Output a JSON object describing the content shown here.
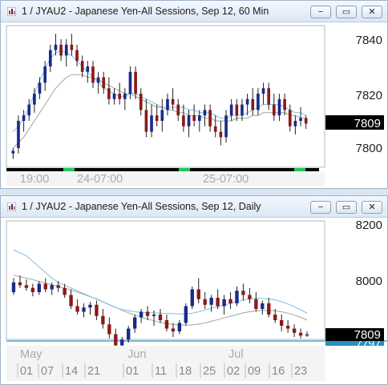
{
  "colors": {
    "bullish": "#1a2a8c",
    "bearish": "#8b1a1a",
    "ma_fast": "#7fbfe6",
    "ma_slow": "#99aa99",
    "accent_line": "#2a8fc0",
    "price_box_bg": "#000000",
    "price_box_fg": "#ffffff"
  },
  "icons": {
    "chart": "chart-icon",
    "minimize": "minimize-icon",
    "maximize": "maximize-icon",
    "close": "close-icon"
  },
  "window1": {
    "title": "1 / JYAU2 - Japanese Yen-All Sessions, Sep 12, 60 Min",
    "buttons": {
      "minimize": "−",
      "maximize": "▭",
      "close": "✕"
    },
    "price_labels": [
      "7840",
      "7820",
      "7800"
    ],
    "last_price": "7809",
    "time_labels": [
      "19:00",
      "24-07:00",
      "25-07:00"
    ],
    "chart_data": {
      "type": "candlestick",
      "y_ticks": [
        7800,
        7820,
        7840
      ],
      "last": 7809,
      "series": [
        {
          "name": "price",
          "ohlc": [
            [
              7798,
              7800,
              7796,
              7799
            ],
            [
              7800,
              7812,
              7798,
              7810
            ],
            [
              7810,
              7814,
              7806,
              7812
            ],
            [
              7812,
              7818,
              7810,
              7816
            ],
            [
              7816,
              7822,
              7813,
              7820
            ],
            [
              7820,
              7826,
              7818,
              7824
            ],
            [
              7824,
              7832,
              7821,
              7830
            ],
            [
              7830,
              7838,
              7828,
              7836
            ],
            [
              7836,
              7842,
              7834,
              7838
            ],
            [
              7838,
              7840,
              7832,
              7834
            ],
            [
              7834,
              7840,
              7830,
              7838
            ],
            [
              7838,
              7842,
              7834,
              7836
            ],
            [
              7836,
              7838,
              7830,
              7832
            ],
            [
              7832,
              7834,
              7826,
              7828
            ],
            [
              7828,
              7832,
              7824,
              7830
            ],
            [
              7830,
              7832,
              7822,
              7824
            ],
            [
              7824,
              7828,
              7820,
              7826
            ],
            [
              7826,
              7828,
              7820,
              7822
            ],
            [
              7822,
              7826,
              7816,
              7818
            ],
            [
              7818,
              7822,
              7816,
              7820
            ],
            [
              7820,
              7824,
              7816,
              7818
            ],
            [
              7818,
              7822,
              7814,
              7820
            ],
            [
              7820,
              7830,
              7818,
              7828
            ],
            [
              7828,
              7830,
              7818,
              7820
            ],
            [
              7820,
              7822,
              7812,
              7814
            ],
            [
              7814,
              7818,
              7804,
              7806
            ],
            [
              7806,
              7816,
              7804,
              7812
            ],
            [
              7812,
              7816,
              7808,
              7810
            ],
            [
              7810,
              7818,
              7806,
              7814
            ],
            [
              7814,
              7820,
              7812,
              7818
            ],
            [
              7818,
              7822,
              7814,
              7816
            ],
            [
              7816,
              7818,
              7810,
              7812
            ],
            [
              7812,
              7816,
              7806,
              7808
            ],
            [
              7808,
              7814,
              7804,
              7812
            ],
            [
              7812,
              7816,
              7808,
              7810
            ],
            [
              7810,
              7814,
              7806,
              7812
            ],
            [
              7812,
              7816,
              7808,
              7814
            ],
            [
              7814,
              7816,
              7806,
              7808
            ],
            [
              7808,
              7812,
              7804,
              7806
            ],
            [
              7806,
              7810,
              7801,
              7804
            ],
            [
              7804,
              7814,
              7802,
              7812
            ],
            [
              7812,
              7818,
              7810,
              7816
            ],
            [
              7816,
              7818,
              7810,
              7812
            ],
            [
              7812,
              7818,
              7810,
              7816
            ],
            [
              7816,
              7820,
              7812,
              7818
            ],
            [
              7818,
              7822,
              7812,
              7814
            ],
            [
              7814,
              7822,
              7812,
              7820
            ],
            [
              7820,
              7824,
              7816,
              7822
            ],
            [
              7822,
              7824,
              7814,
              7816
            ],
            [
              7816,
              7820,
              7810,
              7812
            ],
            [
              7812,
              7820,
              7810,
              7818
            ],
            [
              7818,
              7820,
              7812,
              7814
            ],
            [
              7814,
              7816,
              7806,
              7808
            ],
            [
              7808,
              7812,
              7805,
              7810
            ],
            [
              7810,
              7815,
              7808,
              7811
            ],
            [
              7811,
              7812,
              7807,
              7809
            ]
          ]
        },
        {
          "name": "ma_fast",
          "values": [
            7806,
            7808,
            7811,
            7815,
            7820,
            7825,
            7829,
            7833,
            7835,
            7836,
            7835,
            7834,
            7832,
            7830,
            7828,
            7826,
            7824,
            7822,
            7821,
            7820,
            7819,
            7819,
            7820,
            7820,
            7819,
            7818,
            7817,
            7816,
            7815,
            7815,
            7815,
            7815,
            7815,
            7814,
            7814,
            7813,
            7813,
            7813,
            7812,
            7811,
            7811,
            7812,
            7812,
            7812,
            7813,
            7814,
            7815,
            7816,
            7816,
            7816,
            7816,
            7815,
            7814,
            7813,
            7813,
            7812
          ]
        },
        {
          "name": "ma_slow",
          "values": [
            7800,
            7802,
            7804,
            7807,
            7810,
            7813,
            7816,
            7819,
            7822,
            7824,
            7826,
            7827,
            7827,
            7827,
            7826,
            7826,
            7825,
            7824,
            7823,
            7822,
            7821,
            7820,
            7820,
            7819,
            7818,
            7817,
            7816,
            7815,
            7815,
            7814,
            7814,
            7813,
            7813,
            7812,
            7812,
            7812,
            7811,
            7811,
            7810,
            7810,
            7810,
            7810,
            7811,
            7811,
            7811,
            7812,
            7812,
            7813,
            7813,
            7813,
            7813,
            7813,
            7812,
            7812,
            7811,
            7811
          ]
        }
      ]
    }
  },
  "window2": {
    "title": "1 / JYAU2 - Japanese Yen-All Sessions, Sep 12, Daily",
    "buttons": {
      "minimize": "−",
      "maximize": "▭",
      "close": "✕"
    },
    "price_labels": [
      "8200",
      "8000"
    ],
    "last_price": "7809",
    "ref_price": "7797",
    "month_labels": [
      "May",
      "Jun",
      "Jul"
    ],
    "day_labels": [
      "01",
      "07",
      "14",
      "21",
      "01",
      "11",
      "18",
      "25",
      "02",
      "09",
      "16",
      "23"
    ],
    "chart_data": {
      "type": "candlestick",
      "y_ticks": [
        8000,
        8200
      ],
      "last": 7809,
      "series": [
        {
          "name": "price",
          "ohlc": [
            [
              7960,
              8010,
              7950,
              7995
            ],
            [
              7995,
              8020,
              7975,
              7985
            ],
            [
              7985,
              8005,
              7965,
              7975
            ],
            [
              7975,
              7990,
              7945,
              7960
            ],
            [
              7960,
              8000,
              7950,
              7990
            ],
            [
              7990,
              8010,
              7960,
              7970
            ],
            [
              7970,
              7995,
              7950,
              7985
            ],
            [
              7985,
              8000,
              7960,
              7975
            ],
            [
              7975,
              7990,
              7940,
              7950
            ],
            [
              7950,
              7970,
              7900,
              7910
            ],
            [
              7910,
              7935,
              7880,
              7890
            ],
            [
              7890,
              7920,
              7870,
              7905
            ],
            [
              7905,
              7925,
              7880,
              7915
            ],
            [
              7915,
              7930,
              7860,
              7875
            ],
            [
              7875,
              7900,
              7830,
              7845
            ],
            [
              7845,
              7870,
              7795,
              7810
            ],
            [
              7810,
              7830,
              7760,
              7770
            ],
            [
              7770,
              7800,
              7740,
              7790
            ],
            [
              7790,
              7840,
              7780,
              7830
            ],
            [
              7830,
              7880,
              7815,
              7870
            ],
            [
              7870,
              7900,
              7850,
              7890
            ],
            [
              7890,
              7910,
              7860,
              7875
            ],
            [
              7875,
              7895,
              7840,
              7880
            ],
            [
              7880,
              7900,
              7850,
              7860
            ],
            [
              7860,
              7880,
              7820,
              7830
            ],
            [
              7830,
              7850,
              7800,
              7820
            ],
            [
              7820,
              7860,
              7810,
              7850
            ],
            [
              7850,
              7920,
              7840,
              7910
            ],
            [
              7910,
              7980,
              7900,
              7970
            ],
            [
              7970,
              8010,
              7920,
              7935
            ],
            [
              7935,
              7960,
              7900,
              7915
            ],
            [
              7915,
              7950,
              7890,
              7940
            ],
            [
              7940,
              7970,
              7900,
              7910
            ],
            [
              7910,
              7950,
              7880,
              7935
            ],
            [
              7935,
              7960,
              7900,
              7920
            ],
            [
              7920,
              7980,
              7910,
              7965
            ],
            [
              7965,
              7990,
              7930,
              7950
            ],
            [
              7950,
              7975,
              7920,
              7935
            ],
            [
              7935,
              7960,
              7890,
              7900
            ],
            [
              7900,
              7930,
              7880,
              7920
            ],
            [
              7920,
              7940,
              7870,
              7880
            ],
            [
              7880,
              7900,
              7850,
              7860
            ],
            [
              7860,
              7880,
              7820,
              7840
            ],
            [
              7840,
              7860,
              7815,
              7830
            ],
            [
              7830,
              7845,
              7800,
              7815
            ],
            [
              7815,
              7830,
              7795,
              7805
            ],
            [
              7805,
              7820,
              7800,
              7809
            ]
          ]
        },
        {
          "name": "ma_fast",
          "values": [
            8110,
            8100,
            8090,
            8070,
            8050,
            8030,
            8010,
            7995,
            7985,
            7975,
            7965,
            7955,
            7945,
            7935,
            7925,
            7915,
            7905,
            7898,
            7893,
            7890,
            7888,
            7887,
            7886,
            7885,
            7884,
            7883,
            7882,
            7882,
            7885,
            7890,
            7896,
            7902,
            7908,
            7914,
            7920,
            7926,
            7932,
            7936,
            7938,
            7938,
            7936,
            7932,
            7926,
            7918,
            7908,
            7897,
            7885
          ]
        },
        {
          "name": "ma_slow",
          "values": [
            8020,
            8015,
            8010,
            8005,
            7998,
            7992,
            7986,
            7980,
            7974,
            7968,
            7960,
            7952,
            7944,
            7936,
            7926,
            7916,
            7906,
            7896,
            7886,
            7878,
            7870,
            7864,
            7858,
            7852,
            7848,
            7845,
            7843,
            7842,
            7843,
            7846,
            7850,
            7856,
            7862,
            7868,
            7874,
            7880,
            7886,
            7890,
            7893,
            7895,
            7895,
            7893,
            7890,
            7885,
            7878,
            7870,
            7860
          ]
        }
      ]
    }
  }
}
